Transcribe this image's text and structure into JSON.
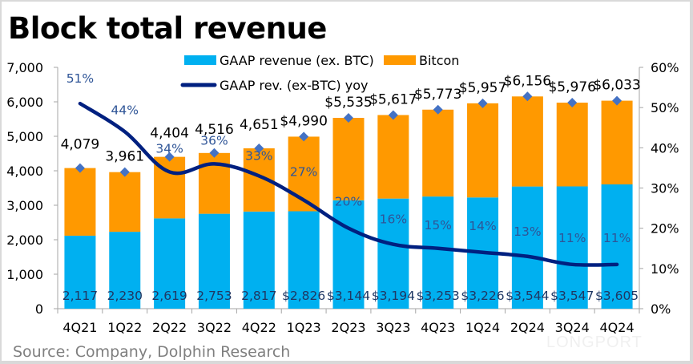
{
  "chart_data": {
    "type": "bar",
    "subtype": "stacked-bar-with-line",
    "title": "Block total revenue",
    "source": "Source: Company, Dolphin Research",
    "watermark": "LONGPORT",
    "categories": [
      "4Q21",
      "1Q22",
      "2Q22",
      "3Q22",
      "4Q22",
      "1Q23",
      "2Q23",
      "3Q23",
      "4Q23",
      "1Q24",
      "2Q24",
      "3Q24",
      "4Q24"
    ],
    "series": [
      {
        "name": "GAAP revenue (ex. BTC)",
        "type": "bar",
        "axis": "left",
        "color": "#00b0f0",
        "values": [
          2117,
          2230,
          2619,
          2753,
          2817,
          2826,
          3144,
          3194,
          3253,
          3226,
          3544,
          3547,
          3605
        ],
        "labels": [
          "2,117",
          "2,230",
          "2,619",
          "2,753",
          "2,817",
          "$2,826",
          "$3,144",
          "$3,194",
          "$3,253",
          "$3,226",
          "$3,544",
          "$3,547",
          "$3,605"
        ]
      },
      {
        "name": "Bitcon",
        "type": "bar",
        "axis": "left",
        "color": "#ff9900",
        "values": [
          1962,
          1731,
          1785,
          1763,
          1834,
          2164,
          2391,
          2423,
          2520,
          2731,
          2612,
          2429,
          2428
        ]
      },
      {
        "name": "GAAP rev. (ex-BTC) yoy",
        "type": "line",
        "axis": "right",
        "color": "#002080",
        "values": [
          51,
          44,
          34,
          36,
          33,
          27,
          20,
          16,
          15,
          14,
          13,
          11,
          11
        ],
        "labels": [
          "51%",
          "44%",
          "34%",
          "36%",
          "33%",
          "27%",
          "20%",
          "16%",
          "15%",
          "14%",
          "13%",
          "11%",
          "11%"
        ]
      }
    ],
    "totals": {
      "values": [
        4079,
        3961,
        4404,
        4516,
        4651,
        4990,
        5535,
        5617,
        5773,
        5957,
        6156,
        5976,
        6033
      ],
      "labels": [
        "4,079",
        "3,961",
        "4,404",
        "4,516",
        "4,651",
        "$4,990",
        "$5,535",
        "$5,617",
        "$5,773",
        "$5,957",
        "$6,156",
        "$5,976",
        "$6,033"
      ],
      "marker_color": "#4472c4"
    },
    "y_left": {
      "ylim": [
        0,
        7000
      ],
      "ticks": [
        "0",
        "1,000",
        "2,000",
        "3,000",
        "4,000",
        "5,000",
        "6,000",
        "7,000"
      ]
    },
    "y_right": {
      "ylim": [
        0,
        60
      ],
      "ticks": [
        "0%",
        "10%",
        "20%",
        "30%",
        "40%",
        "50%",
        "60%"
      ]
    },
    "legend": {
      "placement": "top-center",
      "entries": [
        "GAAP revenue (ex. BTC)",
        "Bitcon",
        "GAAP rev. (ex-BTC) yoy"
      ]
    },
    "grid": false
  }
}
